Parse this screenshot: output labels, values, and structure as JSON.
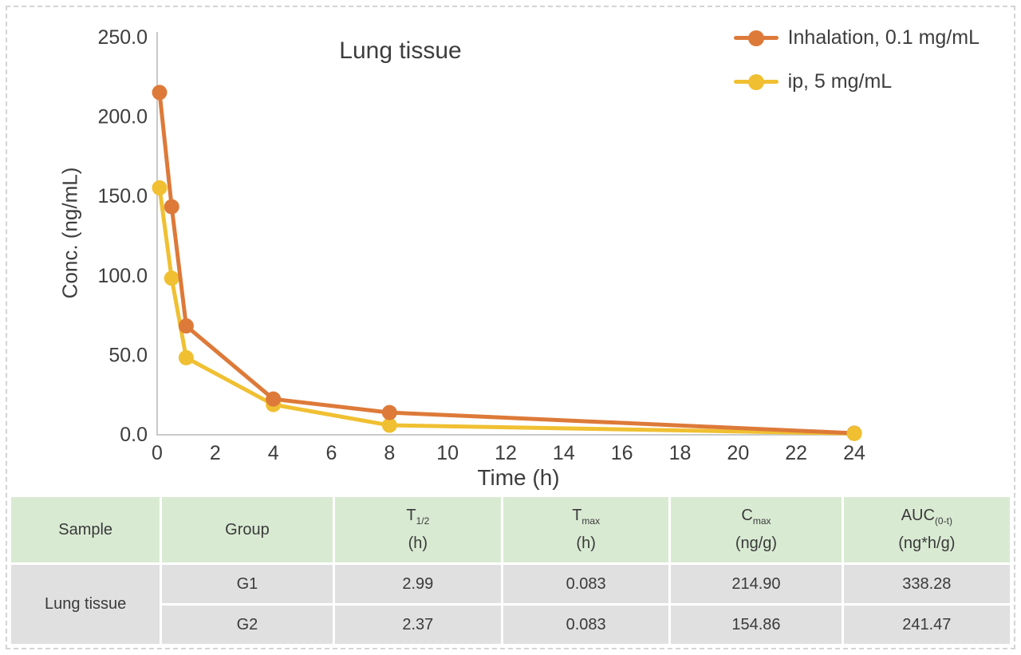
{
  "frame": {
    "background": "#ffffff",
    "border_color": "#d4d4d4"
  },
  "chart_data": {
    "type": "line",
    "title": "Lung tissue",
    "xlabel": "Time (h)",
    "ylabel": "Conc. (ng/mL)",
    "xlim": [
      0,
      24
    ],
    "ylim": [
      0,
      250
    ],
    "x_ticks": [
      0,
      2,
      4,
      6,
      8,
      10,
      12,
      14,
      16,
      18,
      20,
      22,
      24
    ],
    "y_ticks": [
      0,
      50,
      100,
      150,
      200,
      250
    ],
    "y_tick_labels": [
      "0.0",
      "50.0",
      "100.0",
      "150.0",
      "200.0",
      "250.0"
    ],
    "grid": false,
    "legend_position": "top-right",
    "axis_color": "#c9c9c9",
    "series": [
      {
        "name": "Inhalation, 0.1 mg/mL",
        "color": "#dd7a39",
        "x": [
          0.083,
          0.5,
          1,
          4,
          8,
          24
        ],
        "y": [
          214.9,
          143,
          68,
          22,
          13.5,
          0.5
        ]
      },
      {
        "name": "ip, 5 mg/mL",
        "color": "#f0c032",
        "x": [
          0.083,
          0.5,
          1,
          4,
          8,
          24
        ],
        "y": [
          154.9,
          98,
          48,
          18.5,
          5.5,
          0.3
        ]
      }
    ]
  },
  "table": {
    "header_bg": "#d9ead3",
    "cell_bg": "#e0e0e0",
    "columns": [
      {
        "label": "Sample",
        "sub": "",
        "unit": ""
      },
      {
        "label": "Group",
        "sub": "",
        "unit": ""
      },
      {
        "label": "T",
        "sub": "1/2",
        "unit": "(h)"
      },
      {
        "label": "T",
        "sub": "max",
        "unit": "(h)"
      },
      {
        "label": "C",
        "sub": "max",
        "unit": "(ng/g)"
      },
      {
        "label": "AUC",
        "sub": "(0-t)",
        "unit": "(ng*h/g)"
      }
    ],
    "sample": "Lung tissue",
    "rows": [
      {
        "group": "G1",
        "t_half": "2.99",
        "t_max": "0.083",
        "c_max": "214.90",
        "auc": "338.28"
      },
      {
        "group": "G2",
        "t_half": "2.37",
        "t_max": "0.083",
        "c_max": "154.86",
        "auc": "241.47"
      }
    ]
  }
}
